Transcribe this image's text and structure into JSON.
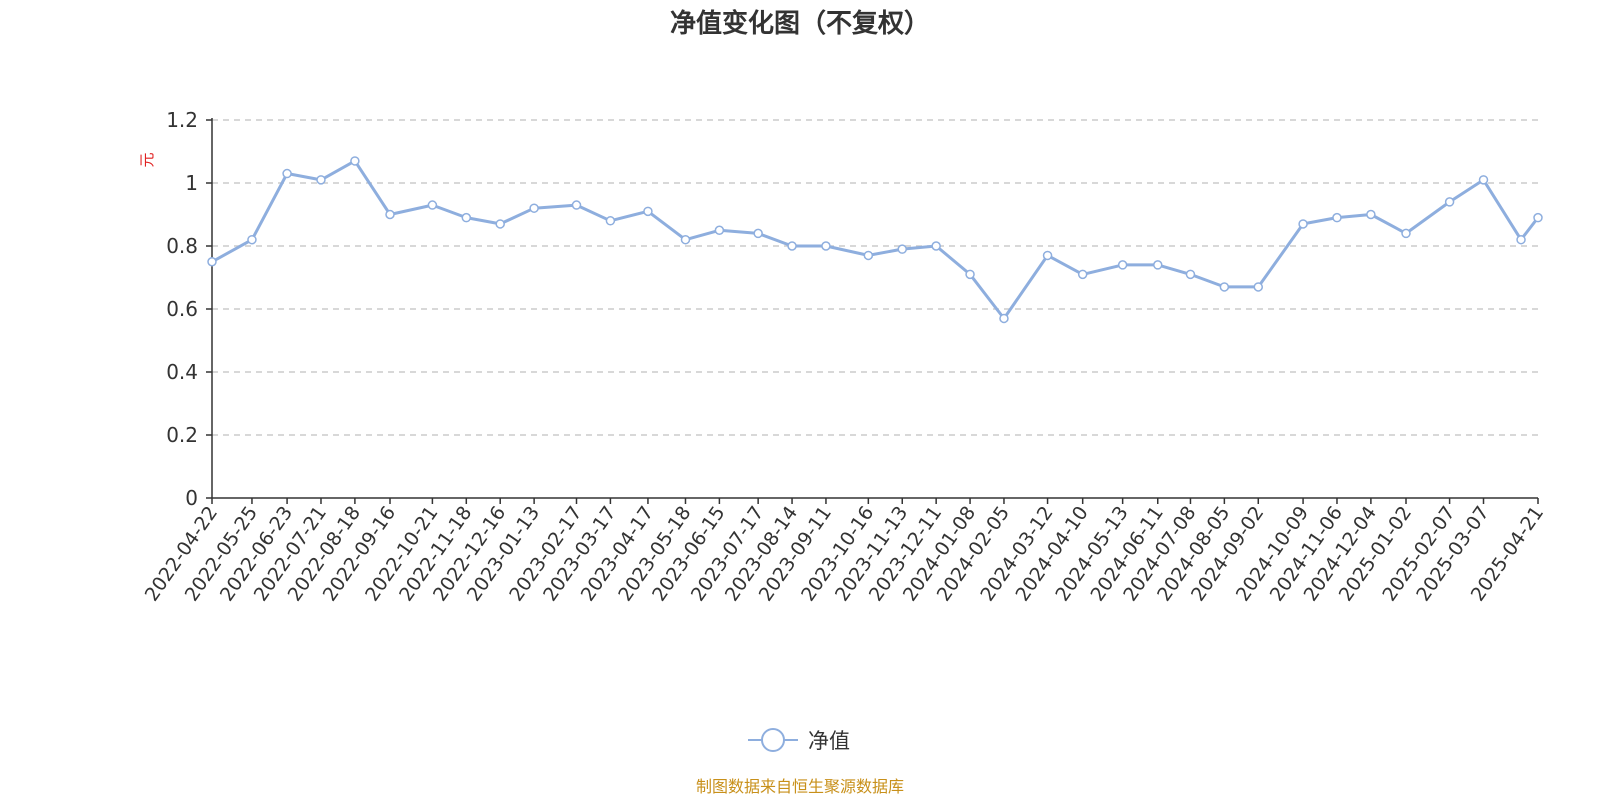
{
  "colors": {
    "series": "#8eaede",
    "ylabel": "#e02020",
    "source": "#c8901a",
    "grid": "#cccccc",
    "axis": "#333333",
    "text": "#333333"
  },
  "chart_data": {
    "type": "line",
    "title": "净值变化图（不复权）",
    "ylabel": "元",
    "ylim": [
      0,
      1.2
    ],
    "yticks": [
      "0",
      "0.2",
      "0.4",
      "0.6",
      "0.8",
      "1",
      "1.2"
    ],
    "grid": true,
    "legend_position": "bottom-center",
    "xticks": [
      "2022-04-22",
      "2022-05-25",
      "2022-06-23",
      "2022-07-21",
      "2022-08-18",
      "2022-09-16",
      "2022-10-21",
      "2022-11-18",
      "2022-12-16",
      "2023-01-13",
      "2023-02-17",
      "2023-03-17",
      "2023-04-17",
      "2023-05-18",
      "2023-06-15",
      "2023-07-17",
      "2023-08-14",
      "2023-09-11",
      "2023-10-16",
      "2023-11-13",
      "2023-12-11",
      "2024-01-08",
      "2024-02-05",
      "2024-03-12",
      "2024-04-10",
      "2024-05-13",
      "2024-06-11",
      "2024-07-08",
      "2024-08-05",
      "2024-09-02",
      "2024-10-09",
      "2024-11-06",
      "2024-12-04",
      "2025-01-02",
      "2025-02-07",
      "2025-03-07",
      "2025-04-21"
    ],
    "series": [
      {
        "name": "净值",
        "marker": "circle",
        "x": [
          "2022-04-22",
          "2022-05-25",
          "2022-06-23",
          "2022-07-21",
          "2022-08-18",
          "2022-09-16",
          "2022-10-21",
          "2022-11-18",
          "2022-12-16",
          "2023-01-13",
          "2023-02-17",
          "2023-03-17",
          "2023-04-17",
          "2023-05-18",
          "2023-06-15",
          "2023-07-17",
          "2023-08-14",
          "2023-09-11",
          "2023-10-16",
          "2023-11-13",
          "2023-12-11",
          "2024-01-08",
          "2024-02-05",
          "2024-03-12",
          "2024-04-10",
          "2024-05-13",
          "2024-06-11",
          "2024-07-08",
          "2024-08-05",
          "2024-09-02",
          "2024-10-09",
          "2024-11-06",
          "2024-12-04",
          "2025-01-02",
          "2025-02-07",
          "2025-03-07",
          "2025-04-07",
          "2025-04-21"
        ],
        "values": [
          0.75,
          0.82,
          1.03,
          1.01,
          1.07,
          0.9,
          0.93,
          0.89,
          0.87,
          0.92,
          0.93,
          0.88,
          0.91,
          0.82,
          0.85,
          0.84,
          0.8,
          0.8,
          0.77,
          0.79,
          0.8,
          0.71,
          0.57,
          0.77,
          0.71,
          0.74,
          0.74,
          0.71,
          0.67,
          0.67,
          0.87,
          0.89,
          0.9,
          0.84,
          0.94,
          1.01,
          0.82,
          0.89
        ]
      }
    ]
  },
  "legend": {
    "label": "净值",
    "icon": "circle-line-marker-icon"
  },
  "source_note": "制图数据来自恒生聚源数据库"
}
